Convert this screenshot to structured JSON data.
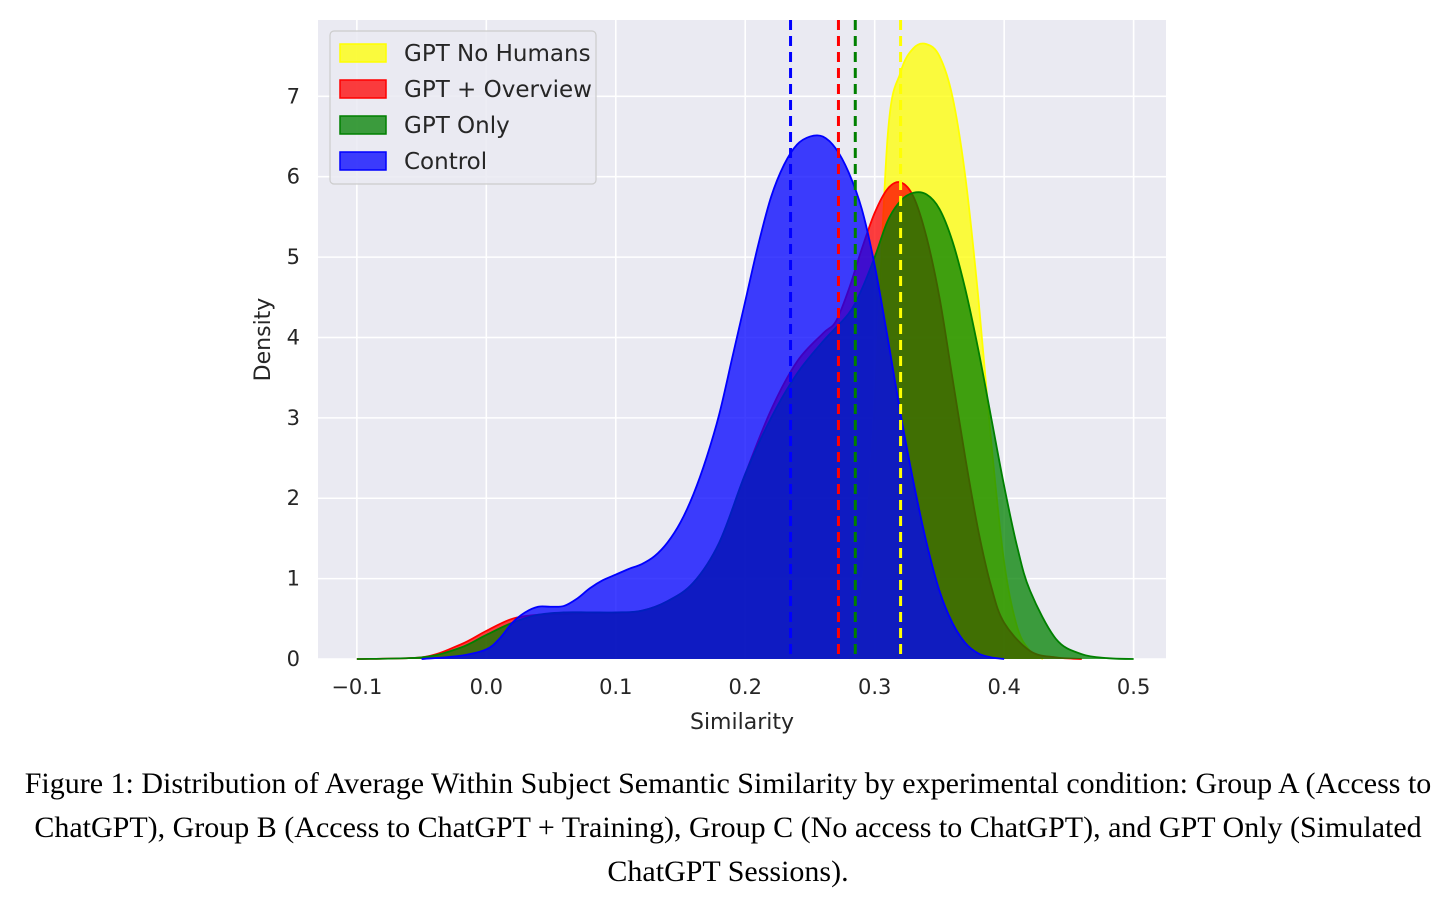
{
  "chart_data": {
    "type": "area",
    "title": "",
    "xlabel": "Similarity",
    "ylabel": "Density",
    "xlim": [
      -0.13,
      0.525
    ],
    "ylim": [
      0,
      7.95
    ],
    "xticks": [
      -0.1,
      0.0,
      0.1,
      0.2,
      0.3,
      0.4,
      0.5
    ],
    "xtick_labels": [
      "−0.1",
      "0.0",
      "0.1",
      "0.2",
      "0.3",
      "0.4",
      "0.5"
    ],
    "yticks": [
      0,
      1,
      2,
      3,
      4,
      5,
      6,
      7
    ],
    "ytick_labels": [
      "0",
      "1",
      "2",
      "3",
      "4",
      "5",
      "6",
      "7"
    ],
    "grid": true,
    "legend_position": "top-left",
    "series": [
      {
        "name": "GPT No Humans",
        "color": "#ffff00",
        "mean": 0.32,
        "points": [
          [
            0.28,
            0
          ],
          [
            0.29,
            0.8
          ],
          [
            0.3,
            3.2
          ],
          [
            0.31,
            6.5
          ],
          [
            0.32,
            7.3
          ],
          [
            0.33,
            7.6
          ],
          [
            0.34,
            7.65
          ],
          [
            0.35,
            7.5
          ],
          [
            0.36,
            7.0
          ],
          [
            0.37,
            6.0
          ],
          [
            0.38,
            4.5
          ],
          [
            0.39,
            2.7
          ],
          [
            0.4,
            1.2
          ],
          [
            0.41,
            0.4
          ],
          [
            0.42,
            0.1
          ],
          [
            0.43,
            0
          ]
        ]
      },
      {
        "name": "GPT + Overview",
        "color": "#ff0000",
        "mean": 0.272,
        "points": [
          [
            -0.1,
            0
          ],
          [
            -0.05,
            0.02
          ],
          [
            -0.02,
            0.18
          ],
          [
            0.0,
            0.35
          ],
          [
            0.02,
            0.5
          ],
          [
            0.04,
            0.55
          ],
          [
            0.06,
            0.56
          ],
          [
            0.08,
            0.57
          ],
          [
            0.1,
            0.57
          ],
          [
            0.12,
            0.6
          ],
          [
            0.14,
            0.72
          ],
          [
            0.16,
            0.95
          ],
          [
            0.18,
            1.45
          ],
          [
            0.2,
            2.3
          ],
          [
            0.22,
            3.1
          ],
          [
            0.24,
            3.7
          ],
          [
            0.26,
            4.05
          ],
          [
            0.27,
            4.2
          ],
          [
            0.28,
            4.6
          ],
          [
            0.29,
            5.1
          ],
          [
            0.3,
            5.55
          ],
          [
            0.31,
            5.85
          ],
          [
            0.32,
            5.93
          ],
          [
            0.33,
            5.75
          ],
          [
            0.34,
            5.25
          ],
          [
            0.35,
            4.5
          ],
          [
            0.36,
            3.5
          ],
          [
            0.37,
            2.5
          ],
          [
            0.38,
            1.6
          ],
          [
            0.39,
            0.9
          ],
          [
            0.4,
            0.45
          ],
          [
            0.42,
            0.1
          ],
          [
            0.44,
            0.02
          ],
          [
            0.46,
            0
          ]
        ]
      },
      {
        "name": "GPT Only",
        "color": "#008000",
        "mean": 0.285,
        "points": [
          [
            -0.1,
            0
          ],
          [
            -0.05,
            0.02
          ],
          [
            -0.02,
            0.14
          ],
          [
            0.0,
            0.3
          ],
          [
            0.02,
            0.45
          ],
          [
            0.04,
            0.55
          ],
          [
            0.06,
            0.58
          ],
          [
            0.08,
            0.58
          ],
          [
            0.1,
            0.58
          ],
          [
            0.12,
            0.6
          ],
          [
            0.14,
            0.72
          ],
          [
            0.16,
            0.95
          ],
          [
            0.18,
            1.45
          ],
          [
            0.2,
            2.3
          ],
          [
            0.22,
            3.0
          ],
          [
            0.24,
            3.55
          ],
          [
            0.26,
            3.95
          ],
          [
            0.28,
            4.3
          ],
          [
            0.29,
            4.6
          ],
          [
            0.3,
            5.0
          ],
          [
            0.31,
            5.45
          ],
          [
            0.32,
            5.7
          ],
          [
            0.33,
            5.8
          ],
          [
            0.34,
            5.78
          ],
          [
            0.35,
            5.6
          ],
          [
            0.36,
            5.2
          ],
          [
            0.37,
            4.6
          ],
          [
            0.38,
            3.85
          ],
          [
            0.39,
            3.0
          ],
          [
            0.4,
            2.15
          ],
          [
            0.41,
            1.4
          ],
          [
            0.42,
            0.85
          ],
          [
            0.44,
            0.25
          ],
          [
            0.46,
            0.06
          ],
          [
            0.48,
            0.01
          ],
          [
            0.5,
            0
          ]
        ]
      },
      {
        "name": "Control",
        "color": "#0000ff",
        "mean": 0.235,
        "points": [
          [
            -0.05,
            0
          ],
          [
            -0.02,
            0.04
          ],
          [
            0.0,
            0.12
          ],
          [
            0.01,
            0.25
          ],
          [
            0.02,
            0.45
          ],
          [
            0.03,
            0.58
          ],
          [
            0.04,
            0.65
          ],
          [
            0.05,
            0.65
          ],
          [
            0.06,
            0.66
          ],
          [
            0.07,
            0.75
          ],
          [
            0.08,
            0.88
          ],
          [
            0.09,
            0.98
          ],
          [
            0.1,
            1.05
          ],
          [
            0.11,
            1.12
          ],
          [
            0.12,
            1.18
          ],
          [
            0.13,
            1.28
          ],
          [
            0.14,
            1.45
          ],
          [
            0.15,
            1.7
          ],
          [
            0.16,
            2.05
          ],
          [
            0.17,
            2.5
          ],
          [
            0.18,
            3.05
          ],
          [
            0.19,
            3.75
          ],
          [
            0.2,
            4.45
          ],
          [
            0.21,
            5.15
          ],
          [
            0.22,
            5.75
          ],
          [
            0.23,
            6.15
          ],
          [
            0.24,
            6.4
          ],
          [
            0.25,
            6.5
          ],
          [
            0.26,
            6.5
          ],
          [
            0.27,
            6.35
          ],
          [
            0.28,
            6.05
          ],
          [
            0.29,
            5.6
          ],
          [
            0.3,
            4.9
          ],
          [
            0.31,
            4.0
          ],
          [
            0.32,
            3.05
          ],
          [
            0.33,
            2.2
          ],
          [
            0.34,
            1.45
          ],
          [
            0.35,
            0.85
          ],
          [
            0.36,
            0.45
          ],
          [
            0.37,
            0.2
          ],
          [
            0.38,
            0.07
          ],
          [
            0.39,
            0.02
          ],
          [
            0.4,
            0
          ]
        ]
      }
    ]
  },
  "caption": "Figure 1: Distribution of Average Within Subject Semantic Similarity by experimental condition: Group A (Access to ChatGPT), Group B (Access to ChatGPT + Training), Group C (No access to ChatGPT), and GPT Only (Simulated ChatGPT Sessions)."
}
